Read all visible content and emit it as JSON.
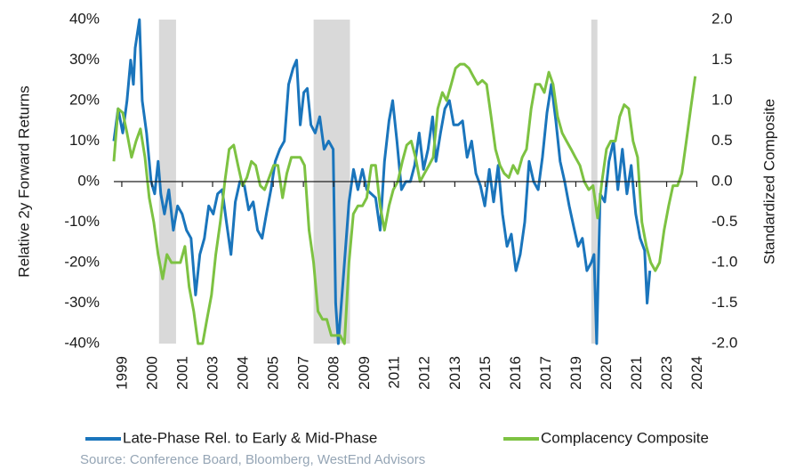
{
  "chart_data": {
    "type": "line",
    "ylabel": "Relative 2y Forward Returns",
    "y2label": "Standardized Composite",
    "source": "Source: Conference Board, Bloomberg, WestEnd Advisors",
    "xlim": [
      1998.65,
      2024.35
    ],
    "xticks": [
      {
        "value": 1999.0,
        "label": "1999"
      },
      {
        "value": 2000.33,
        "label": "2000"
      },
      {
        "value": 2001.67,
        "label": "2001"
      },
      {
        "value": 2003.0,
        "label": "2003"
      },
      {
        "value": 2004.33,
        "label": "2004"
      },
      {
        "value": 2005.67,
        "label": "2005"
      },
      {
        "value": 2007.0,
        "label": "2007"
      },
      {
        "value": 2008.33,
        "label": "2008"
      },
      {
        "value": 2009.67,
        "label": "2009"
      },
      {
        "value": 2011.0,
        "label": "2011"
      },
      {
        "value": 2012.33,
        "label": "2012"
      },
      {
        "value": 2013.67,
        "label": "2013"
      },
      {
        "value": 2015.0,
        "label": "2015"
      },
      {
        "value": 2016.33,
        "label": "2016"
      },
      {
        "value": 2017.67,
        "label": "2017"
      },
      {
        "value": 2019.0,
        "label": "2019"
      },
      {
        "value": 2020.33,
        "label": "2020"
      },
      {
        "value": 2021.67,
        "label": "2021"
      },
      {
        "value": 2023.0,
        "label": "2023"
      },
      {
        "value": 2024.33,
        "label": "2024"
      }
    ],
    "ylim": [
      -40,
      40
    ],
    "yticks": [
      {
        "value": 40,
        "label": "40%"
      },
      {
        "value": 30,
        "label": "30%"
      },
      {
        "value": 20,
        "label": "20%"
      },
      {
        "value": 10,
        "label": "10%"
      },
      {
        "value": 0,
        "label": "0%"
      },
      {
        "value": -10,
        "label": "-10%"
      },
      {
        "value": -20,
        "label": "-20%"
      },
      {
        "value": -30,
        "label": "-30%"
      },
      {
        "value": -40,
        "label": "-40%"
      }
    ],
    "y2lim": [
      -2,
      2
    ],
    "y2ticks": [
      {
        "value": 2,
        "label": "2.0"
      },
      1.5,
      {
        "value": 1,
        "label": "1.0"
      },
      0.5,
      {
        "value": 0,
        "label": "0.0"
      },
      -0.5,
      {
        "value": -1,
        "label": "-1.0"
      },
      -1.5,
      {
        "value": -2,
        "label": "-2.0"
      }
    ],
    "recessions": [
      [
        2000.64,
        2001.39
      ],
      [
        2007.45,
        2009.05
      ],
      [
        2019.68,
        2019.95
      ]
    ],
    "recession_color": "#d9d9d9",
    "series": [
      {
        "name": "Late-Phase Rel. to Early & Mid-Phase",
        "color": "#1a75bc",
        "axis": "y",
        "x": [
          1998.65,
          1998.84,
          1999.04,
          1999.23,
          1999.39,
          1999.51,
          1999.59,
          1999.78,
          1999.9,
          2000.09,
          2000.29,
          2000.45,
          2000.6,
          2000.72,
          2000.88,
          2001.07,
          2001.27,
          2001.46,
          2001.66,
          2001.85,
          2002.05,
          2002.25,
          2002.44,
          2002.64,
          2002.83,
          2003.03,
          2003.22,
          2003.42,
          2003.61,
          2003.81,
          2004.0,
          2004.2,
          2004.4,
          2004.59,
          2004.79,
          2004.98,
          2005.18,
          2005.37,
          2005.57,
          2005.76,
          2005.96,
          2006.16,
          2006.35,
          2006.55,
          2006.7,
          2006.86,
          2007.02,
          2007.17,
          2007.33,
          2007.52,
          2007.72,
          2007.91,
          2008.11,
          2008.31,
          2008.42,
          2008.54,
          2008.81,
          2009.01,
          2009.21,
          2009.4,
          2009.6,
          2009.79,
          2009.99,
          2010.18,
          2010.38,
          2010.57,
          2010.77,
          2010.93,
          2011.12,
          2011.32,
          2011.51,
          2011.71,
          2011.9,
          2012.1,
          2012.29,
          2012.49,
          2012.69,
          2012.84,
          2013.04,
          2013.23,
          2013.43,
          2013.62,
          2013.82,
          2014.01,
          2014.21,
          2014.41,
          2014.6,
          2014.8,
          2014.99,
          2015.19,
          2015.38,
          2015.58,
          2015.77,
          2015.97,
          2016.16,
          2016.36,
          2016.55,
          2016.75,
          2016.94,
          2017.14,
          2017.34,
          2017.53,
          2017.73,
          2017.92,
          2018.12,
          2018.31,
          2018.51,
          2018.71,
          2018.9,
          2019.1,
          2019.29,
          2019.49,
          2019.68,
          2019.8,
          2019.92,
          2020.07,
          2020.27,
          2020.46,
          2020.66,
          2020.85,
          2021.05,
          2021.25,
          2021.44,
          2021.64,
          2021.83,
          2022.03,
          2022.14,
          2022.26
        ],
        "values": [
          10,
          18,
          12,
          20,
          30,
          24,
          33,
          40,
          20,
          12,
          0,
          -3,
          5,
          -3,
          -8,
          -2,
          -12,
          -6,
          -8,
          -12,
          -14,
          -28,
          -18,
          -14,
          -6,
          -8,
          -3,
          -2,
          -10,
          -18,
          -5,
          0,
          -1,
          -7,
          -5,
          -12,
          -14,
          -8,
          -2,
          5,
          8,
          10,
          24,
          28,
          30,
          14,
          22,
          23,
          14,
          12,
          16,
          8,
          10,
          8,
          -30,
          -40,
          -20,
          -5,
          3,
          -2,
          3,
          -2,
          -3,
          -4,
          -12,
          5,
          15,
          20,
          10,
          -2,
          0,
          0,
          4,
          12,
          3,
          8,
          16,
          5,
          12,
          18,
          20,
          14,
          14,
          15,
          6,
          10,
          2,
          -1,
          -6,
          3,
          -5,
          4,
          -8,
          -16,
          -13,
          -22,
          -18,
          -10,
          5,
          0,
          -2,
          6,
          17,
          24,
          15,
          5,
          0,
          -6,
          -11,
          -16,
          -14,
          -22,
          -20,
          -18,
          -40,
          -3,
          -5,
          5,
          10,
          -2,
          8,
          -3,
          4,
          -8,
          -14,
          -17,
          -30,
          -22
        ]
      },
      {
        "name": "Complacency Composite",
        "color": "#7dc242",
        "axis": "y2",
        "x": [
          1998.65,
          1998.84,
          1999.04,
          1999.23,
          1999.43,
          1999.63,
          1999.82,
          2000.02,
          2000.21,
          2000.41,
          2000.6,
          2000.8,
          2000.99,
          2001.19,
          2001.39,
          2001.58,
          2001.78,
          2001.97,
          2002.17,
          2002.36,
          2002.56,
          2002.75,
          2002.95,
          2003.14,
          2003.34,
          2003.54,
          2003.73,
          2003.93,
          2004.12,
          2004.32,
          2004.51,
          2004.71,
          2004.9,
          2005.1,
          2005.29,
          2005.49,
          2005.69,
          2005.88,
          2006.08,
          2006.27,
          2006.47,
          2006.66,
          2006.86,
          2007.05,
          2007.25,
          2007.45,
          2007.64,
          2007.84,
          2008.03,
          2008.23,
          2008.42,
          2008.62,
          2008.81,
          2009.01,
          2009.2,
          2009.4,
          2009.6,
          2009.79,
          2009.99,
          2010.18,
          2010.38,
          2010.57,
          2010.77,
          2010.96,
          2011.16,
          2011.36,
          2011.55,
          2011.75,
          2011.94,
          2012.14,
          2012.33,
          2012.53,
          2012.72,
          2012.92,
          2013.12,
          2013.31,
          2013.51,
          2013.7,
          2013.9,
          2014.09,
          2014.29,
          2014.48,
          2014.68,
          2014.88,
          2015.07,
          2015.27,
          2015.46,
          2015.66,
          2015.85,
          2016.05,
          2016.24,
          2016.44,
          2016.64,
          2016.83,
          2017.03,
          2017.22,
          2017.42,
          2017.61,
          2017.81,
          2018.0,
          2018.2,
          2018.4,
          2018.59,
          2018.79,
          2018.98,
          2019.18,
          2019.37,
          2019.57,
          2019.76,
          2019.96,
          2020.15,
          2020.35,
          2020.54,
          2020.74,
          2020.93,
          2021.13,
          2021.33,
          2021.52,
          2021.72,
          2021.91,
          2022.11,
          2022.3,
          2022.5,
          2022.69,
          2022.89,
          2023.09,
          2023.28,
          2023.48,
          2023.67,
          2023.87,
          2024.06,
          2024.26
        ],
        "values": [
          0.25,
          0.9,
          0.85,
          0.6,
          0.3,
          0.5,
          0.65,
          0.3,
          -0.2,
          -0.5,
          -0.9,
          -1.2,
          -0.9,
          -1.0,
          -1.0,
          -1.0,
          -0.8,
          -1.3,
          -1.6,
          -2.0,
          -2.0,
          -1.7,
          -1.4,
          -0.9,
          -0.5,
          0.0,
          0.4,
          0.45,
          0.2,
          -0.05,
          0.05,
          0.25,
          0.2,
          -0.05,
          -0.1,
          0.05,
          0.2,
          0.2,
          -0.2,
          0.1,
          0.3,
          0.3,
          0.3,
          0.2,
          -0.6,
          -1.0,
          -1.6,
          -1.7,
          -1.7,
          -1.9,
          -1.9,
          -1.9,
          -2.0,
          -1.0,
          -0.4,
          -0.3,
          -0.3,
          -0.2,
          0.2,
          0.2,
          -0.3,
          -0.6,
          -0.3,
          -0.1,
          0.0,
          0.25,
          0.45,
          0.5,
          0.3,
          0.0,
          0.1,
          0.2,
          0.3,
          0.9,
          1.1,
          1.0,
          1.2,
          1.4,
          1.45,
          1.45,
          1.4,
          1.3,
          1.2,
          1.25,
          1.2,
          0.8,
          0.4,
          0.2,
          0.1,
          0.05,
          0.2,
          0.1,
          0.3,
          0.4,
          0.9,
          1.2,
          1.2,
          1.1,
          1.35,
          1.2,
          0.8,
          0.6,
          0.5,
          0.4,
          0.3,
          0.2,
          0.0,
          -0.1,
          -0.05,
          -0.45,
          0.0,
          0.4,
          0.5,
          0.5,
          0.8,
          0.95,
          0.9,
          0.5,
          0.3,
          -0.5,
          -0.8,
          -1.0,
          -1.1,
          -1.0,
          -0.6,
          -0.3,
          -0.05,
          -0.05,
          0.1,
          0.5,
          0.9,
          1.3
        ]
      }
    ]
  }
}
